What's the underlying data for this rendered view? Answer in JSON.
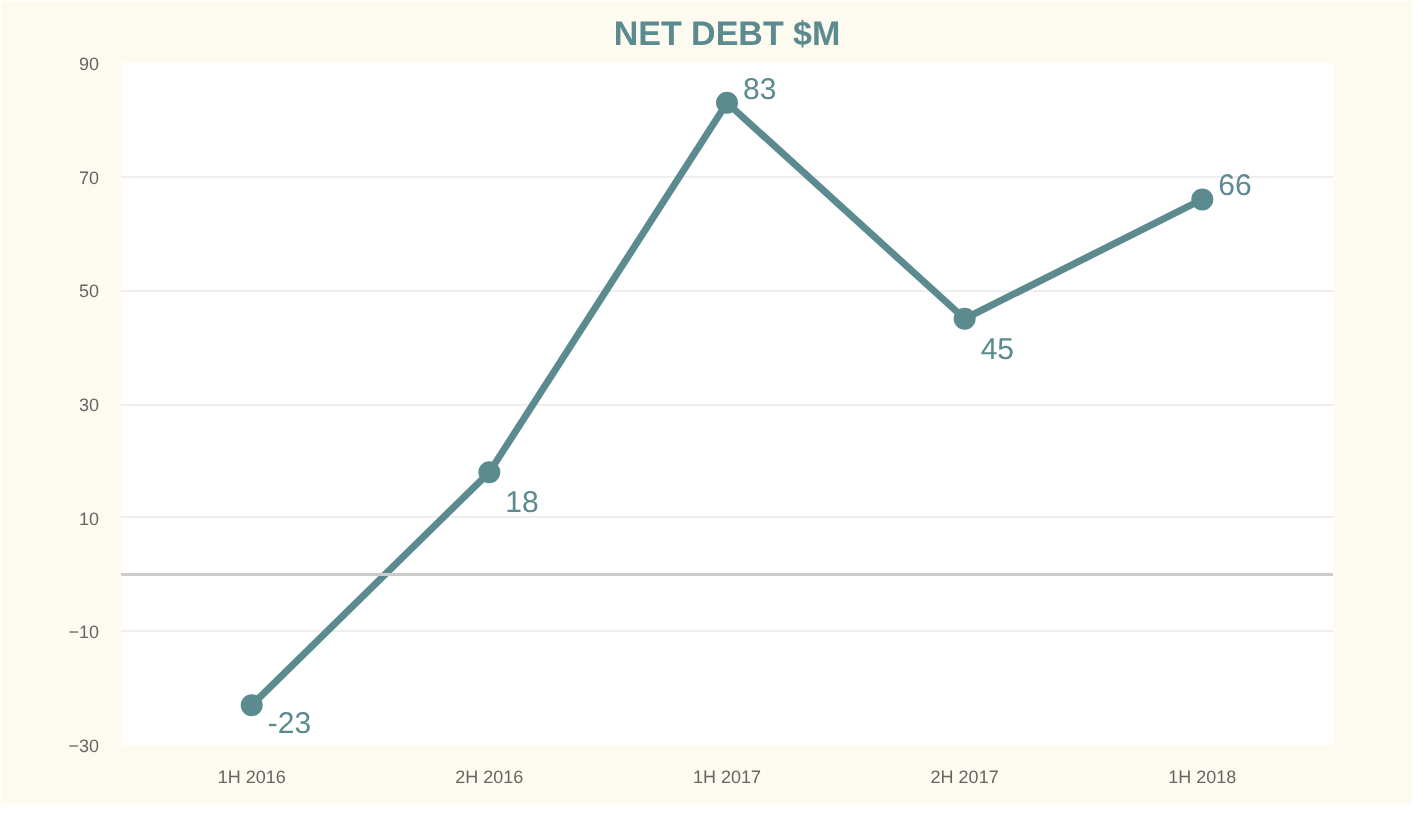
{
  "chart_data": {
    "type": "line",
    "title": "NET DEBT $M",
    "categories": [
      "1H 2016",
      "2H 2016",
      "1H 2017",
      "2H 2017",
      "1H 2018"
    ],
    "series": [
      {
        "color": "#5b8a8f",
        "values": [
          -23,
          18,
          83,
          45,
          66
        ]
      }
    ],
    "ylim": [
      -30,
      90
    ],
    "yticks": [
      -30,
      -10,
      10,
      30,
      50,
      70,
      90
    ],
    "grid": "y",
    "marker": "circle",
    "line_style": "solid",
    "data_labels": true,
    "ref_lines": [
      {
        "axis": "y",
        "value": 0,
        "color": "#cccccc"
      }
    ]
  }
}
